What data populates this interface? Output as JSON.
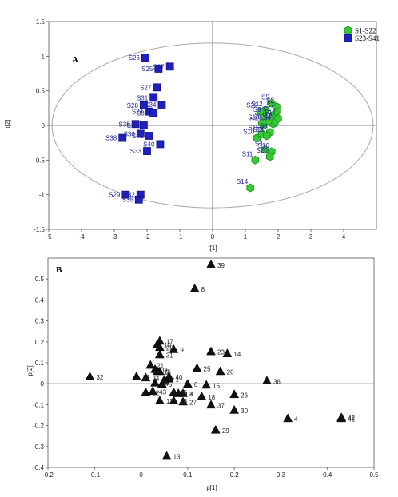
{
  "chart_data": [
    {
      "type": "scatter",
      "panel": "A",
      "xlabel": "t[1]",
      "ylabel": "t[2]",
      "xlim": [
        -5,
        5
      ],
      "ylim": [
        -1.5,
        1.5
      ],
      "xticks": [
        "-5",
        "-4",
        "-3",
        "-2",
        "-1",
        "0",
        "1",
        "2",
        "3",
        "4"
      ],
      "yticks": [
        "1.5",
        "1",
        "0.5",
        "0",
        "-0.5",
        "-1",
        "-1.5"
      ],
      "ellipse": {
        "center": [
          0,
          0
        ],
        "radii": [
          4.9,
          1.19
        ]
      },
      "legend": [
        "S1-S22",
        "S23-S41"
      ],
      "colors": {
        "green": "#33cc33",
        "green_edge": "#1e8a1e",
        "blue": "#2020c0",
        "blue_edge": "#10107a",
        "label_blue": "#22229a"
      },
      "series": [
        {
          "name": "S1-S22",
          "points": [
            {
              "label": "S1",
              "x": 1.85,
              "y": 0.15
            },
            {
              "label": "S2",
              "x": 1.95,
              "y": 0.27
            },
            {
              "label": "S3",
              "x": 1.6,
              "y": -0.35
            },
            {
              "label": "S4",
              "x": 1.85,
              "y": 0.02
            },
            {
              "label": "S5",
              "x": 1.8,
              "y": 0.32
            },
            {
              "label": "S6",
              "x": 1.9,
              "y": 0.05
            },
            {
              "label": "S7",
              "x": 1.95,
              "y": 0.2
            },
            {
              "label": "S8",
              "x": 1.75,
              "y": -0.1
            },
            {
              "label": "S9",
              "x": 1.55,
              "y": 0.14
            },
            {
              "label": "S10",
              "x": 1.35,
              "y": -0.18
            },
            {
              "label": "S11",
              "x": 1.3,
              "y": -0.5
            },
            {
              "label": "S12",
              "x": 1.6,
              "y": 0.22
            },
            {
              "label": "S13",
              "x": 1.55,
              "y": 0.0
            },
            {
              "label": "S14",
              "x": 1.15,
              "y": -0.9
            },
            {
              "label": "S15",
              "x": 1.5,
              "y": -0.12
            },
            {
              "label": "S16",
              "x": 1.8,
              "y": -0.38
            },
            {
              "label": "S17",
              "x": 2.0,
              "y": 0.1
            },
            {
              "label": "S18",
              "x": 1.5,
              "y": 0.03
            },
            {
              "label": "S19",
              "x": 1.7,
              "y": 0.06
            },
            {
              "label": "S20",
              "x": 1.75,
              "y": -0.45
            },
            {
              "label": "S21",
              "x": 1.65,
              "y": -0.15
            },
            {
              "label": "S22",
              "x": 1.45,
              "y": 0.2
            }
          ]
        },
        {
          "name": "S23-S41",
          "points": [
            {
              "label": "S23",
              "x": -2.1,
              "y": 0.0
            },
            {
              "label": "S24",
              "x": -1.95,
              "y": 0.2
            },
            {
              "label": "S25",
              "x": -1.65,
              "y": 0.82
            },
            {
              "label": "S26",
              "x": -2.05,
              "y": 0.98
            },
            {
              "label": "S27",
              "x": -1.7,
              "y": 0.55
            },
            {
              "label": "S28",
              "x": -2.1,
              "y": 0.29
            },
            {
              "label": "S29",
              "x": -2.65,
              "y": -1.0
            },
            {
              "label": "S30",
              "x": -2.2,
              "y": -0.12
            },
            {
              "label": "S31",
              "x": -1.8,
              "y": 0.4
            },
            {
              "label": "S32",
              "x": -2.2,
              "y": -1.0
            },
            {
              "label": "S33",
              "x": -2.0,
              "y": -0.37
            },
            {
              "label": "S34",
              "x": -1.55,
              "y": 0.3
            },
            {
              "label": "S35",
              "x": -2.35,
              "y": 0.02
            },
            {
              "label": "S36",
              "x": -2.25,
              "y": -1.07
            },
            {
              "label": "S37",
              "x": -1.3,
              "y": 0.85
            },
            {
              "label": "S38",
              "x": -2.75,
              "y": -0.18
            },
            {
              "label": "S39",
              "x": -1.8,
              "y": 0.18
            },
            {
              "label": "S40",
              "x": -1.6,
              "y": -0.27
            },
            {
              "label": "S41",
              "x": -1.95,
              "y": -0.15
            }
          ]
        }
      ]
    },
    {
      "type": "scatter",
      "panel": "B",
      "xlabel": "p[1]",
      "ylabel": "p[2]",
      "xlim": [
        -0.2,
        0.5
      ],
      "ylim": [
        -0.4,
        0.6
      ],
      "xticks": [
        "-0.2",
        "-0.1",
        "0",
        "0.1",
        "0.2",
        "0.3",
        "0.4",
        "0.5"
      ],
      "yticks": [
        "0.5",
        "0.4",
        "0.3",
        "0.2",
        "0.1",
        "0",
        "-0.1",
        "-0.2",
        "-0.3",
        "-0.4"
      ],
      "points": [
        {
          "label": "1",
          "x": 0.06,
          "y": 0.025
        },
        {
          "label": "2",
          "x": 0.04,
          "y": 0.06
        },
        {
          "label": "3",
          "x": 0.09,
          "y": -0.045
        },
        {
          "label": "4",
          "x": 0.315,
          "y": -0.165
        },
        {
          "label": "5",
          "x": 0.045,
          "y": 0.0
        },
        {
          "label": "6",
          "x": 0.1,
          "y": 0.0
        },
        {
          "label": "7",
          "x": 0.05,
          "y": 0.02
        },
        {
          "label": "8",
          "x": 0.115,
          "y": 0.455
        },
        {
          "label": "9",
          "x": 0.07,
          "y": 0.165
        },
        {
          "label": "10",
          "x": 0.035,
          "y": 0.19
        },
        {
          "label": "11",
          "x": 0.03,
          "y": 0.07
        },
        {
          "label": "12",
          "x": 0.04,
          "y": -0.08
        },
        {
          "label": "13",
          "x": 0.055,
          "y": -0.345
        },
        {
          "label": "14",
          "x": 0.185,
          "y": 0.145
        },
        {
          "label": "15",
          "x": 0.14,
          "y": -0.005
        },
        {
          "label": "16",
          "x": 0.035,
          "y": 0.06
        },
        {
          "label": "17",
          "x": 0.04,
          "y": 0.205
        },
        {
          "label": "18",
          "x": 0.13,
          "y": -0.06
        },
        {
          "label": "19",
          "x": 0.08,
          "y": -0.045
        },
        {
          "label": "20",
          "x": 0.17,
          "y": 0.06
        },
        {
          "label": "21",
          "x": 0.02,
          "y": 0.09
        },
        {
          "label": "22",
          "x": 0.01,
          "y": -0.04
        },
        {
          "label": "23",
          "x": 0.15,
          "y": 0.155
        },
        {
          "label": "24",
          "x": 0.01,
          "y": 0.03
        },
        {
          "label": "25",
          "x": 0.12,
          "y": 0.075
        },
        {
          "label": "26",
          "x": 0.2,
          "y": -0.05
        },
        {
          "label": "27",
          "x": 0.09,
          "y": -0.085
        },
        {
          "label": "28",
          "x": 0.04,
          "y": 0.175
        },
        {
          "label": "29",
          "x": 0.16,
          "y": -0.22
        },
        {
          "label": "30",
          "x": 0.2,
          "y": -0.125
        },
        {
          "label": "31",
          "x": 0.04,
          "y": 0.14
        },
        {
          "label": "32",
          "x": -0.11,
          "y": 0.035
        },
        {
          "label": "33",
          "x": -0.01,
          "y": 0.035
        },
        {
          "label": "34",
          "x": 0.03,
          "y": 0.005
        },
        {
          "label": "35",
          "x": 0.07,
          "y": -0.04
        },
        {
          "label": "36",
          "x": 0.27,
          "y": 0.015
        },
        {
          "label": "37",
          "x": 0.15,
          "y": -0.1
        },
        {
          "label": "38",
          "x": 0.07,
          "y": -0.08
        },
        {
          "label": "39",
          "x": 0.15,
          "y": 0.57
        },
        {
          "label": "40",
          "x": 0.06,
          "y": 0.035
        },
        {
          "label": "41",
          "x": 0.43,
          "y": -0.165
        },
        {
          "label": "42",
          "x": 0.43,
          "y": -0.16
        },
        {
          "label": "43",
          "x": 0.025,
          "y": -0.035
        }
      ]
    }
  ]
}
